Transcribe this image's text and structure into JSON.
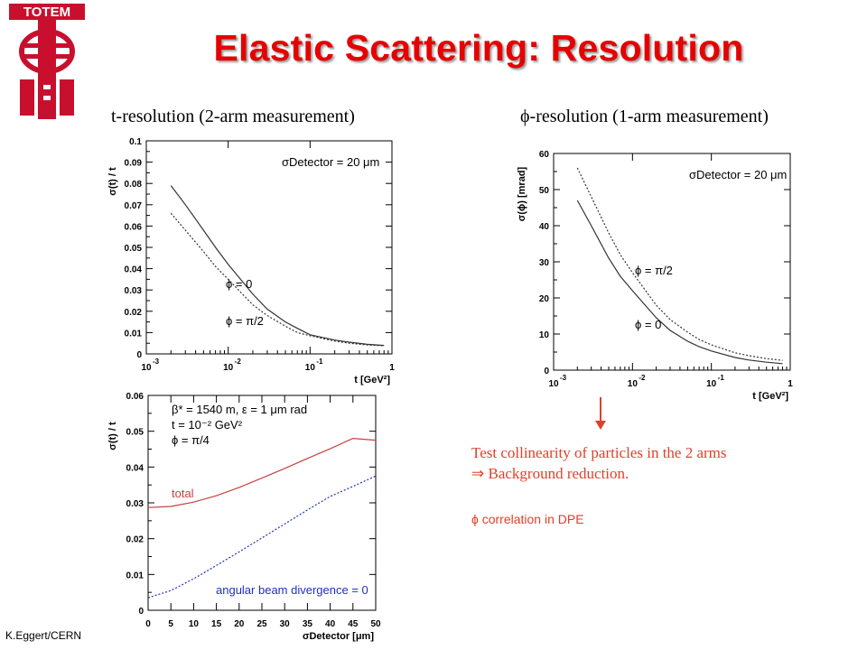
{
  "header": {
    "logo_text": "TOTEM",
    "title": "Elastic Scattering: Resolution"
  },
  "subtitles": {
    "left": "t-resolution (2-arm measurement)",
    "right_symbol": "ϕ",
    "right_rest": "-resolution (1-arm measurement)"
  },
  "notes": {
    "line1": "Test collinearity of particles in the 2 arms",
    "line2": "⇒ Background reduction.",
    "dpe": "ϕ correlation in DPE"
  },
  "footer": "K.Eggert/CERN",
  "colors": {
    "title": "#e60000",
    "note": "#e0402a",
    "total_curve": "#c84040",
    "divergence_curve": "#2030c0"
  },
  "chart_data": [
    {
      "type": "line",
      "xscale": "log",
      "xlim": [
        0.001,
        1
      ],
      "ylim": [
        0,
        0.1
      ],
      "ylabel": "σ(t) / t",
      "xlabel": "t [GeV²]",
      "x_ticks": [
        "10",
        "10",
        "10",
        "1"
      ],
      "x_tick_exponents": [
        "-3",
        "-2",
        "-1",
        ""
      ],
      "y_ticks": [
        "0",
        "0.01",
        "0.02",
        "0.03",
        "0.04",
        "0.05",
        "0.06",
        "0.07",
        "0.08",
        "0.09",
        "0.1"
      ],
      "annotation": "σDetector = 20 μm",
      "series": [
        {
          "name": "ϕ = 0",
          "style": "solid",
          "x": [
            0.002,
            0.003,
            0.005,
            0.007,
            0.01,
            0.02,
            0.03,
            0.05,
            0.07,
            0.1,
            0.2,
            0.3,
            0.5,
            0.8
          ],
          "y": [
            0.079,
            0.07,
            0.058,
            0.05,
            0.042,
            0.028,
            0.021,
            0.015,
            0.012,
            0.009,
            0.0065,
            0.0055,
            0.0045,
            0.004
          ]
        },
        {
          "name": "ϕ = π/2",
          "style": "dotted",
          "x": [
            0.002,
            0.003,
            0.005,
            0.007,
            0.01,
            0.02,
            0.03,
            0.05,
            0.07,
            0.1,
            0.2,
            0.3,
            0.5,
            0.8
          ],
          "y": [
            0.066,
            0.058,
            0.048,
            0.041,
            0.035,
            0.023,
            0.018,
            0.013,
            0.01,
            0.0085,
            0.006,
            0.005,
            0.0042,
            0.0038
          ]
        }
      ]
    },
    {
      "type": "line",
      "xscale": "log",
      "xlim": [
        0.001,
        1
      ],
      "ylim": [
        0,
        60
      ],
      "ylabel": "σ(ϕ) [mrad]",
      "xlabel": "t [GeV²]",
      "x_ticks": [
        "10",
        "10",
        "10",
        "1"
      ],
      "x_tick_exponents": [
        "-3",
        "-2",
        "-1",
        ""
      ],
      "y_ticks": [
        "0",
        "10",
        "20",
        "30",
        "40",
        "50",
        "60"
      ],
      "annotation": "σDetector = 20 μm",
      "series": [
        {
          "name": "ϕ = π/2",
          "style": "dotted",
          "x": [
            0.002,
            0.003,
            0.005,
            0.007,
            0.01,
            0.02,
            0.03,
            0.05,
            0.07,
            0.1,
            0.2,
            0.3,
            0.5,
            0.8
          ],
          "y": [
            56,
            48,
            38,
            32,
            27,
            18,
            14,
            10.5,
            8.5,
            7,
            4.8,
            4,
            3.2,
            2.7
          ]
        },
        {
          "name": "ϕ = 0",
          "style": "solid",
          "x": [
            0.002,
            0.003,
            0.005,
            0.007,
            0.01,
            0.02,
            0.03,
            0.05,
            0.07,
            0.1,
            0.2,
            0.3,
            0.5,
            0.8
          ],
          "y": [
            47,
            40,
            31,
            26,
            22,
            14.5,
            11,
            8,
            6.5,
            5.3,
            3.5,
            2.8,
            2.2,
            1.8
          ]
        }
      ]
    },
    {
      "type": "line",
      "xlim": [
        0,
        50
      ],
      "ylim": [
        0,
        0.06
      ],
      "ylabel": "σ(t) / t",
      "xlabel": "σDetector [μm]",
      "x_ticks": [
        "0",
        "5",
        "10",
        "15",
        "20",
        "25",
        "30",
        "35",
        "40",
        "45",
        "50"
      ],
      "y_ticks": [
        "0",
        "0.01",
        "0.02",
        "0.03",
        "0.04",
        "0.05",
        "0.06"
      ],
      "annotations": [
        "β* = 1540 m, ε = 1 μm rad",
        "t = 10⁻² GeV²",
        "ϕ = π/4"
      ],
      "series": [
        {
          "name": "total",
          "style": "solid",
          "x": [
            0,
            5,
            10,
            15,
            20,
            25,
            30,
            35,
            40,
            45,
            50
          ],
          "y": [
            0.0287,
            0.029,
            0.0302,
            0.032,
            0.0343,
            0.0369,
            0.0396,
            0.0424,
            0.0451,
            0.048,
            0.0475
          ]
        },
        {
          "name": "angular beam divergence = 0",
          "style": "dotted",
          "x": [
            0,
            5,
            10,
            15,
            20,
            25,
            30,
            35,
            40,
            45,
            50
          ],
          "y": [
            0.0035,
            0.0055,
            0.0088,
            0.0125,
            0.0163,
            0.0202,
            0.0241,
            0.028,
            0.0318,
            0.0346,
            0.0375
          ]
        }
      ]
    }
  ]
}
